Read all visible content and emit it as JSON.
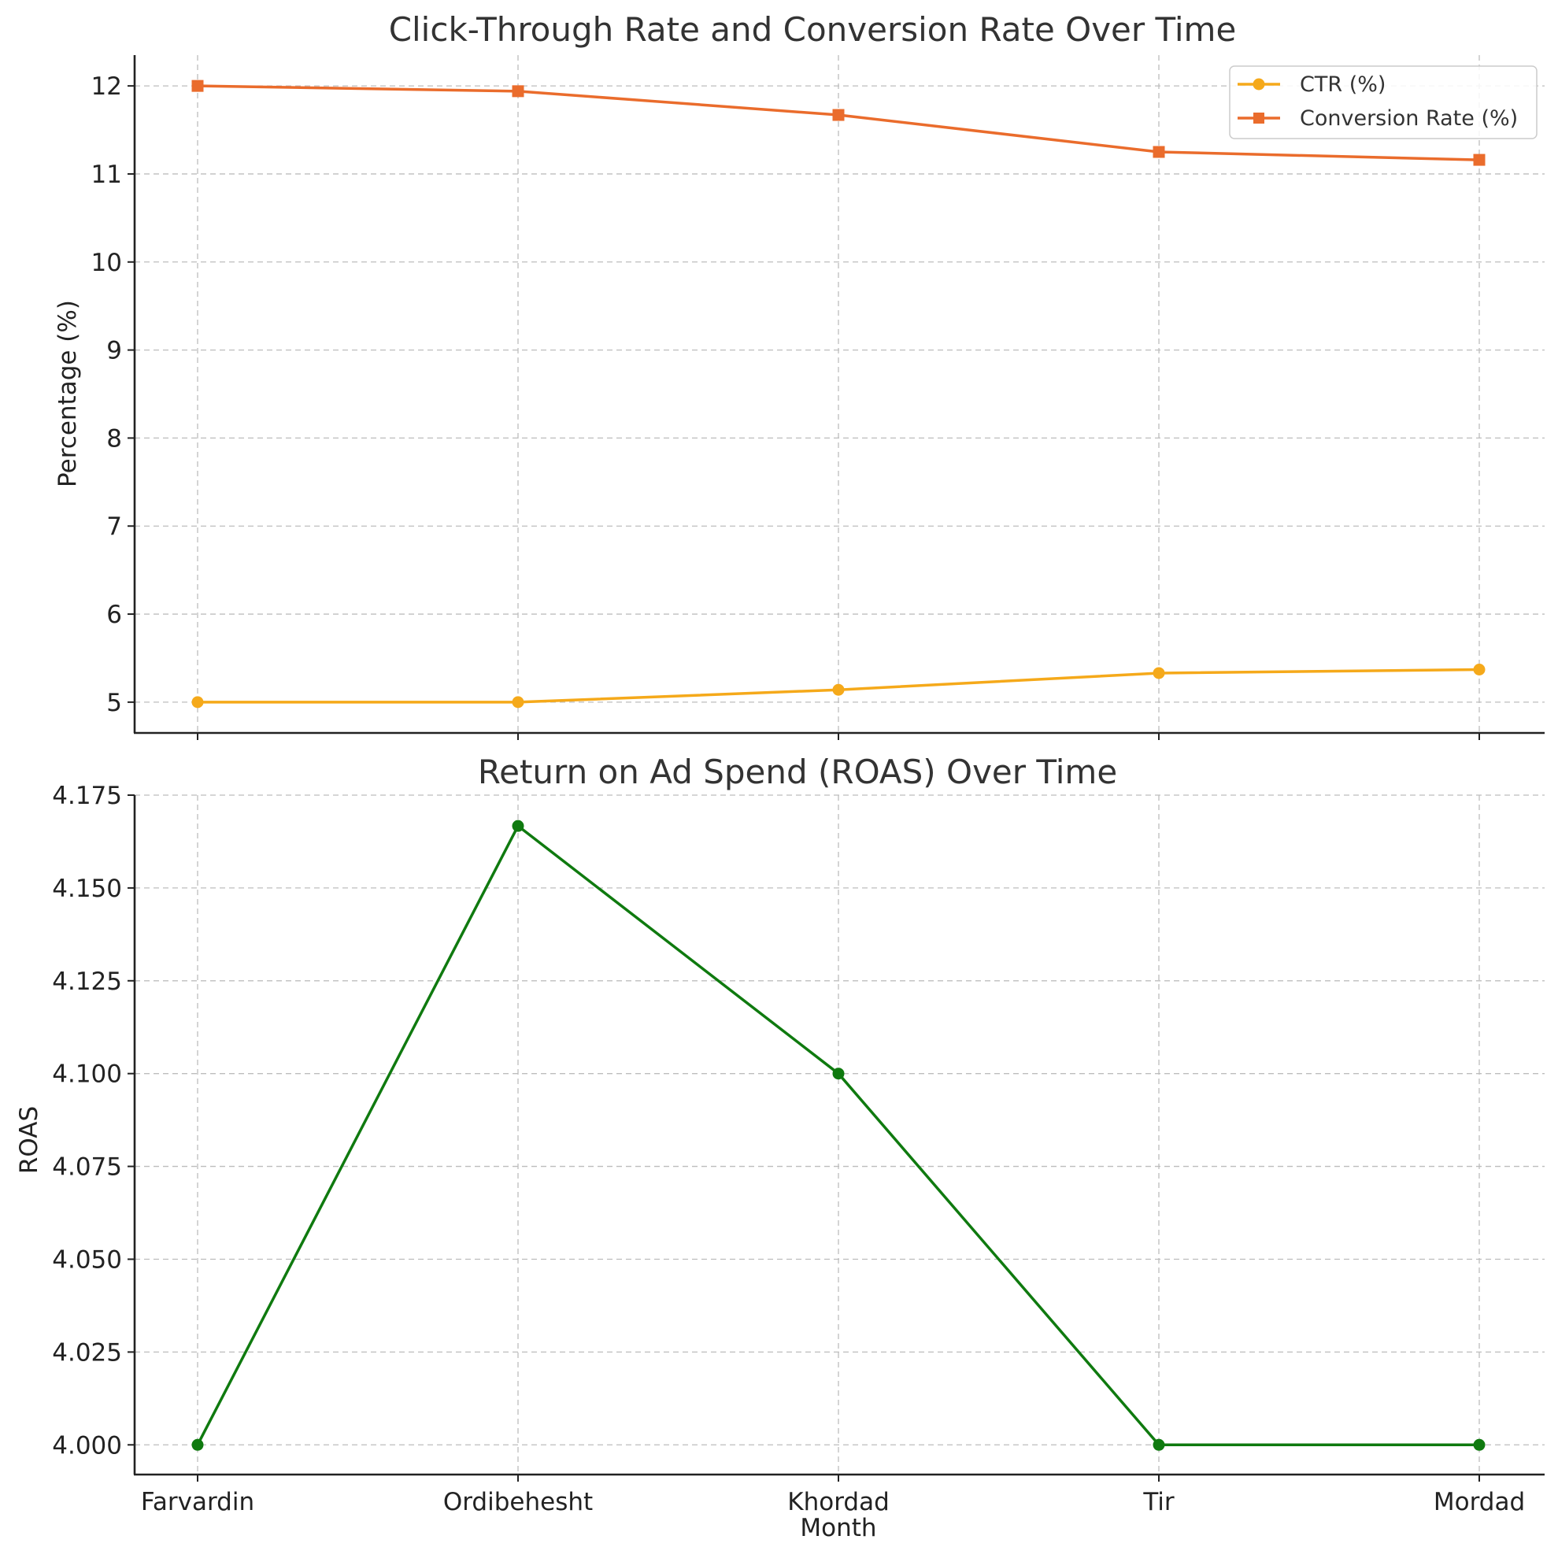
{
  "chart_data": [
    {
      "type": "line",
      "title": "Click-Through Rate and Conversion Rate Over Time",
      "xlabel": "",
      "ylabel": "Percentage (%)",
      "categories": [
        "Farvardin",
        "Ordibehesht",
        "Khordad",
        "Tir",
        "Mordad"
      ],
      "ylim": [
        4.65,
        12.35
      ],
      "yticks": [
        5,
        6,
        7,
        8,
        9,
        10,
        11,
        12
      ],
      "ytick_labels": [
        "5",
        "6",
        "7",
        "8",
        "9",
        "10",
        "11",
        "12"
      ],
      "grid": true,
      "legend_position": "top-right",
      "series": [
        {
          "name": "CTR (%)",
          "marker": "circle",
          "color": "#F5A91A",
          "values": [
            5.0,
            5.0,
            5.14,
            5.33,
            5.37
          ]
        },
        {
          "name": "Conversion Rate (%)",
          "marker": "square",
          "color": "#EA6C2C",
          "values": [
            12.0,
            11.94,
            11.67,
            11.25,
            11.16
          ]
        }
      ]
    },
    {
      "type": "line",
      "title": "Return on Ad Spend (ROAS) Over Time",
      "xlabel": "Month",
      "ylabel": "ROAS",
      "categories": [
        "Farvardin",
        "Ordibehesht",
        "Khordad",
        "Tir",
        "Mordad"
      ],
      "ylim": [
        3.992,
        4.175
      ],
      "yticks": [
        4.0,
        4.025,
        4.05,
        4.075,
        4.1,
        4.125,
        4.15,
        4.175
      ],
      "ytick_labels": [
        "4.000",
        "4.025",
        "4.050",
        "4.075",
        "4.100",
        "4.125",
        "4.150",
        "4.175"
      ],
      "grid": true,
      "series": [
        {
          "name": "ROAS",
          "marker": "circle",
          "color": "#0F7A0F",
          "values": [
            4.0,
            4.1667,
            4.1,
            4.0,
            4.0
          ]
        }
      ]
    }
  ]
}
